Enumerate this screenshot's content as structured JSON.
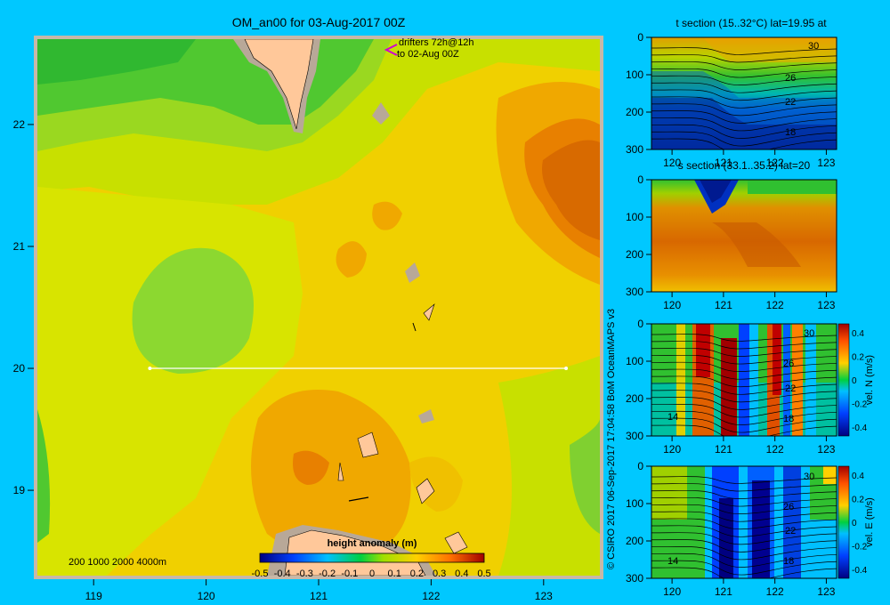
{
  "main_map": {
    "title": "OM_an00 for 03-Aug-2017 00Z",
    "drifters_line1": "drifters 72h@12h",
    "drifters_line2": "to 02-Aug 00Z",
    "depth_legend": "200  1000  2000  4000m",
    "colorbar_title": "height anomaly (m)",
    "colorbar_ticks": [
      "-0.5",
      "-0.4",
      "-0.3",
      "-0.2",
      "-0.1",
      "0",
      "0.1",
      "0.2",
      "0.3",
      "0.4",
      "0.5"
    ],
    "x_ticks": [
      "119",
      "120",
      "121",
      "122",
      "123"
    ],
    "y_ticks": [
      "22",
      "21",
      "20",
      "19"
    ],
    "section_line": {
      "lat": 20,
      "lon_start": 119.5,
      "lon_end": 123.2
    }
  },
  "copyright": "© CSIRO 2017   06-Sep-2017 17:04:58 BoM OceanMAPS v3",
  "panels": [
    {
      "id": "t",
      "title": "t section (15..32°C) lat=19.95 at",
      "contours": [
        "30",
        "26",
        "22",
        "18"
      ],
      "colorbar": null
    },
    {
      "id": "s",
      "title": "s section (33.1..35.2) lat=20",
      "contours": [],
      "colorbar": null
    },
    {
      "id": "v",
      "title": "",
      "contours": [
        "30",
        "26",
        "22",
        "18",
        "14"
      ],
      "colorbar": {
        "label": "vel. N (m/s)",
        "ticks": [
          "0.4",
          "0.2",
          "0",
          "-0.2",
          "-0.4"
        ]
      }
    },
    {
      "id": "u",
      "title": "",
      "contours": [
        "30",
        "26",
        "22",
        "18",
        "14"
      ],
      "colorbar": {
        "label": "vel. E (m/s)",
        "ticks": [
          "0.4",
          "0.2",
          "0",
          "-0.2",
          "-0.4"
        ]
      }
    }
  ],
  "panel_x_ticks": [
    "120",
    "121",
    "122",
    "123"
  ],
  "panel_y_ticks": [
    "0",
    "100",
    "200",
    "300"
  ],
  "chart_data": [
    {
      "type": "heatmap",
      "title": "OM_an00 for 03-Aug-2017 00Z",
      "colorbar_label": "height anomaly (m)",
      "clim": [
        -0.5,
        0.5
      ],
      "xlim": [
        118.5,
        123.5
      ],
      "ylim": [
        18.3,
        22.7
      ]
    },
    {
      "type": "heatmap",
      "title": "t section (15..32°C) lat=19.95 at",
      "xlim": [
        119.6,
        123.2
      ],
      "ylim": [
        300,
        0
      ],
      "contour_levels": [
        30,
        26,
        22,
        18
      ]
    },
    {
      "type": "heatmap",
      "title": "s section (33.1..35.2) lat=20",
      "xlim": [
        119.6,
        123.2
      ],
      "ylim": [
        300,
        0
      ]
    },
    {
      "type": "heatmap",
      "title": "",
      "colorbar_label": "vel. N (m/s)",
      "clim": [
        -0.4,
        0.4
      ],
      "xlim": [
        119.6,
        123.2
      ],
      "ylim": [
        300,
        0
      ]
    },
    {
      "type": "heatmap",
      "title": "",
      "colorbar_label": "vel. E (m/s)",
      "clim": [
        -0.4,
        0.4
      ],
      "xlim": [
        119.6,
        123.2
      ],
      "ylim": [
        300,
        0
      ]
    }
  ]
}
